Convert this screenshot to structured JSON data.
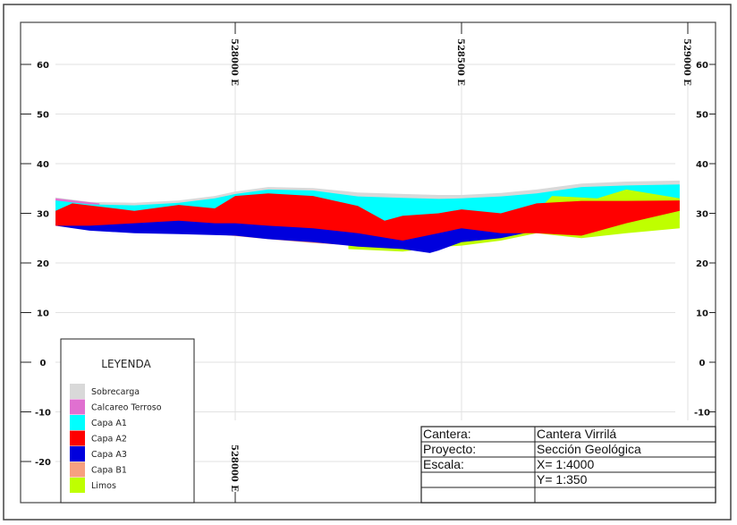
{
  "chart_data": {
    "type": "area",
    "title": "",
    "xlabel": "",
    "ylabel": "",
    "ylim": [
      -27,
      68
    ],
    "xlim": [
      527520,
      529025
    ],
    "grid": true,
    "yticks": [
      60,
      50,
      40,
      30,
      20,
      10,
      0,
      -10,
      -20
    ],
    "ytick_labels": [
      "60",
      "50",
      "40",
      "30",
      "20",
      "10",
      "0",
      "-10",
      "-20"
    ],
    "xticks": [
      528000,
      528500,
      529000
    ],
    "xtick_labels": [
      "528000  E",
      "528500  E",
      "529000  E"
    ],
    "layers": [
      {
        "name": "Sobrecarga",
        "color": "#d9d9d9",
        "top": [
          [
            527603,
            33.2
          ],
          [
            527678,
            32.3
          ],
          [
            527777,
            32.1
          ],
          [
            527875,
            32.6
          ],
          [
            527955,
            33.5
          ],
          [
            528000,
            34.4
          ],
          [
            528073,
            35.3
          ],
          [
            528172,
            35.1
          ],
          [
            528271,
            34.2
          ],
          [
            528370,
            33.9
          ],
          [
            528449,
            33.7
          ],
          [
            528500,
            33.7
          ],
          [
            528587,
            34.1
          ],
          [
            528666,
            34.8
          ],
          [
            528765,
            36.0
          ],
          [
            528864,
            36.4
          ],
          [
            528982,
            36.6
          ]
        ],
        "bottom": [
          [
            527603,
            29
          ],
          [
            528982,
            30
          ]
        ]
      },
      {
        "name": "Calcareo Terroso",
        "color": "#e070d0",
        "top": [
          [
            527603,
            33.0
          ],
          [
            527700,
            32.0
          ]
        ],
        "bottom": [
          [
            527603,
            31.5
          ],
          [
            527700,
            31.5
          ]
        ]
      },
      {
        "name": "Capa A1",
        "color": "#00ffff",
        "top": [
          [
            527603,
            32.6
          ],
          [
            527678,
            31.8
          ],
          [
            527777,
            31.6
          ],
          [
            527875,
            32.1
          ],
          [
            527955,
            33.0
          ],
          [
            528000,
            33.9
          ],
          [
            528073,
            34.8
          ],
          [
            528172,
            34.6
          ],
          [
            528271,
            33.4
          ],
          [
            528370,
            33.1
          ],
          [
            528449,
            32.9
          ],
          [
            528500,
            33.0
          ],
          [
            528587,
            33.4
          ],
          [
            528666,
            34.0
          ],
          [
            528765,
            35.3
          ],
          [
            528864,
            35.6
          ],
          [
            528982,
            35.8
          ]
        ],
        "bottom": [
          [
            527603,
            28
          ],
          [
            528982,
            29
          ]
        ]
      },
      {
        "name": "Limos",
        "color": "#bfff00",
        "top": [
          [
            528250,
            27
          ],
          [
            528500,
            28
          ],
          [
            528650,
            29
          ],
          [
            528700,
            33.5
          ],
          [
            528800,
            33
          ],
          [
            528864,
            34.8
          ],
          [
            528982,
            33
          ]
        ],
        "bottom": [
          [
            528250,
            22.8
          ],
          [
            528370,
            22.3
          ],
          [
            528450,
            23.2
          ],
          [
            528500,
            23.5
          ],
          [
            528587,
            24.5
          ],
          [
            528666,
            26
          ],
          [
            528765,
            25
          ],
          [
            528864,
            26
          ],
          [
            528982,
            27
          ]
        ]
      },
      {
        "name": "Capa B1",
        "color": "#f7a080",
        "top": [
          [
            527955,
            27
          ],
          [
            528200,
            27
          ],
          [
            528300,
            26
          ]
        ],
        "bottom": [
          [
            527955,
            25.8
          ],
          [
            528073,
            24.8
          ],
          [
            528172,
            24
          ],
          [
            528271,
            23.5
          ],
          [
            528330,
            23.2
          ],
          [
            528380,
            24
          ]
        ]
      },
      {
        "name": "Capa A3",
        "color": "#0000dd",
        "top": [
          [
            527603,
            28
          ],
          [
            527800,
            28.8
          ],
          [
            528000,
            28.5
          ],
          [
            528172,
            27.8
          ],
          [
            528271,
            27
          ],
          [
            528370,
            25.5
          ],
          [
            528449,
            27
          ],
          [
            528500,
            27.8
          ],
          [
            528587,
            27
          ],
          [
            528666,
            27
          ],
          [
            528765,
            26.5
          ],
          [
            528864,
            28.5
          ],
          [
            528982,
            31
          ]
        ],
        "bottom": [
          [
            527603,
            27.5
          ],
          [
            527678,
            26.5
          ],
          [
            527777,
            26
          ],
          [
            527875,
            25.8
          ],
          [
            528000,
            25.5
          ],
          [
            528073,
            24.8
          ],
          [
            528172,
            24.2
          ],
          [
            528271,
            23.3
          ],
          [
            528370,
            22.8
          ],
          [
            528430,
            22.0
          ],
          [
            528449,
            22.5
          ],
          [
            528500,
            24.2
          ],
          [
            528587,
            25
          ],
          [
            528666,
            26.5
          ],
          [
            528765,
            27.3
          ],
          [
            528864,
            29
          ],
          [
            528982,
            31
          ]
        ]
      },
      {
        "name": "Capa A2",
        "color": "#ff0000",
        "top": [
          [
            527603,
            30.5
          ],
          [
            527640,
            32
          ],
          [
            527777,
            30.5
          ],
          [
            527875,
            31.7
          ],
          [
            527955,
            31
          ],
          [
            528000,
            33.5
          ],
          [
            528073,
            34
          ],
          [
            528172,
            33.5
          ],
          [
            528271,
            31.5
          ],
          [
            528330,
            28.5
          ],
          [
            528370,
            29.5
          ],
          [
            528449,
            30
          ],
          [
            528500,
            30.8
          ],
          [
            528587,
            30
          ],
          [
            528666,
            32
          ],
          [
            528765,
            32.5
          ],
          [
            528864,
            32.5
          ],
          [
            528982,
            32.6
          ]
        ],
        "bottom": [
          [
            527603,
            27.5
          ],
          [
            527678,
            27.5
          ],
          [
            527777,
            28
          ],
          [
            527875,
            28.5
          ],
          [
            527955,
            28
          ],
          [
            528000,
            28
          ],
          [
            528073,
            27.5
          ],
          [
            528172,
            27
          ],
          [
            528271,
            26
          ],
          [
            528370,
            24.5
          ],
          [
            528449,
            26
          ],
          [
            528500,
            27
          ],
          [
            528587,
            26
          ],
          [
            528666,
            26
          ],
          [
            528765,
            25.5
          ],
          [
            528864,
            28
          ],
          [
            528982,
            30.5
          ]
        ]
      }
    ]
  },
  "legend": {
    "title": "LEYENDA",
    "items": [
      {
        "label": "Sobrecarga",
        "color": "#d9d9d9"
      },
      {
        "label": "Calcareo Terroso",
        "color": "#e070d0"
      },
      {
        "label": "Capa A1",
        "color": "#00ffff"
      },
      {
        "label": "Capa A2",
        "color": "#ff0000"
      },
      {
        "label": "Capa A3",
        "color": "#0000dd"
      },
      {
        "label": "Capa B1",
        "color": "#f7a080"
      },
      {
        "label": "Limos",
        "color": "#bfff00"
      }
    ]
  },
  "title_block": {
    "rows": [
      {
        "label": "Cantera:",
        "value": "Cantera Virrilá"
      },
      {
        "label": "Proyecto:",
        "value": "Sección Geológica"
      },
      {
        "label": "Escala:",
        "value": "X= 1:4000"
      },
      {
        "label": "",
        "value": "Y= 1:350"
      }
    ]
  }
}
